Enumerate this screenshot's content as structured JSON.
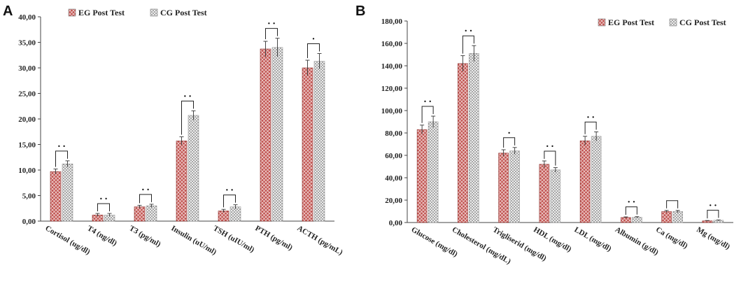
{
  "panels": [
    {
      "letter": "A",
      "colors": {
        "eg": "#c0504d",
        "cg": "#d9d9d9"
      },
      "legend": [
        "EG Post Test",
        "CG Post Test"
      ],
      "chart_data": {
        "type": "bar",
        "title": "",
        "xlabel": "",
        "ylabel": "",
        "ylim": [
          0,
          40
        ],
        "yticks": [
          0,
          5,
          10,
          15,
          20,
          25,
          30,
          35,
          40
        ],
        "ytick_labels": [
          "0,00",
          "5,00",
          "10,00",
          "15,00",
          "20,00",
          "25,00",
          "30,00",
          "35,00",
          "40,00"
        ],
        "categories": [
          "Cortisol (ug/dl)",
          "T4 (ng/dl)",
          "T3 (pg/ml)",
          "Insulin (uU/ml)",
          "TSH (uIU/ml)",
          "PTH (pg/ml)",
          "ACTH (pg/mL)"
        ],
        "series": [
          {
            "name": "EG Post Test",
            "values": [
              9.7,
              1.2,
              2.8,
              15.7,
              2.0,
              33.7,
              30.0
            ],
            "errors": [
              0.5,
              0.3,
              0.3,
              0.8,
              0.3,
              1.5,
              1.5
            ]
          },
          {
            "name": "CG Post Test",
            "values": [
              11.2,
              1.2,
              3.0,
              20.7,
              2.8,
              34.0,
              31.3
            ],
            "errors": [
              0.6,
              0.3,
              0.3,
              0.9,
              0.4,
              1.8,
              1.5
            ]
          }
        ],
        "significance": [
          "• •",
          "• •",
          "• •",
          "• •",
          "• •",
          "• •",
          "•"
        ]
      }
    },
    {
      "letter": "B",
      "colors": {
        "eg": "#c0504d",
        "cg": "#d9d9d9"
      },
      "legend": [
        "EG Post Test",
        "CG Post Test"
      ],
      "chart_data": {
        "type": "bar",
        "title": "",
        "xlabel": "",
        "ylabel": "",
        "ylim": [
          0,
          180
        ],
        "yticks": [
          0,
          20,
          40,
          60,
          80,
          100,
          120,
          140,
          160,
          180
        ],
        "ytick_labels": [
          "0,00",
          "20,00",
          "40,00",
          "60,00",
          "80,00",
          "100,00",
          "120,00",
          "140,00",
          "160,00",
          "180,00"
        ],
        "categories": [
          "Glucose (mg/dl)",
          "Cholesterol (mg/dL)",
          "Trigliserid (mg/dl)",
          "HDL (mg/dl)",
          "LDL (mg/dl)",
          "Albumin (g/dl)",
          "Ca (mg/dl)",
          "Mg (mg/dl)"
        ],
        "series": [
          {
            "name": "EG Post Test",
            "values": [
              83,
              142,
              62,
              52,
              73,
              4.5,
              9.8,
              1.5
            ],
            "errors": [
              4,
              7,
              3,
              3,
              4,
              0.5,
              1,
              0.3
            ]
          },
          {
            "name": "CG Post Test",
            "values": [
              90,
              151,
              64,
              47,
              77,
              4.7,
              9.8,
              2.0
            ],
            "errors": [
              5,
              7,
              3,
              2,
              4,
              0.5,
              1,
              0.3
            ]
          }
        ],
        "significance": [
          "• •",
          "• •",
          "•",
          "• •",
          "• •",
          "• •",
          "",
          "• •"
        ]
      }
    }
  ]
}
